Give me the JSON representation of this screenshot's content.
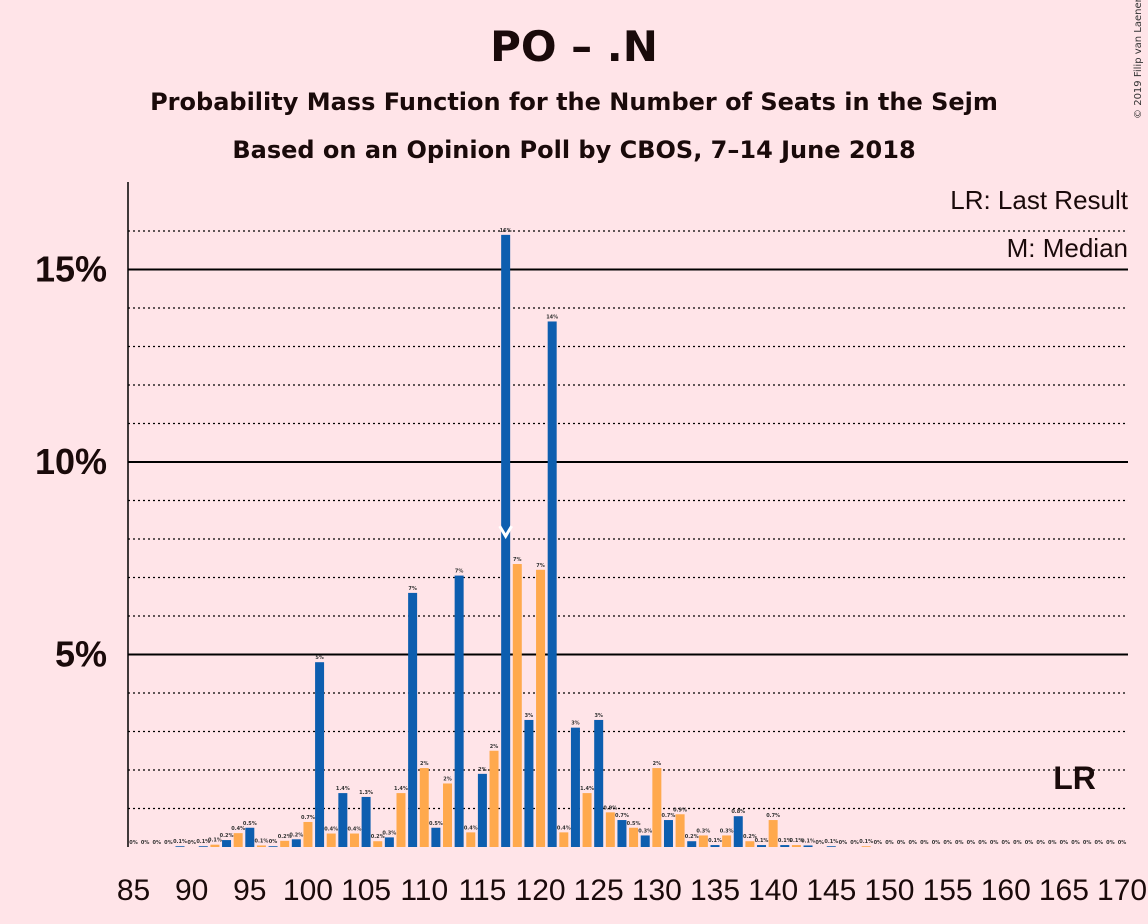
{
  "title": "PO – .N",
  "subtitle1": "Probability Mass Function for the Number of Seats in the Sejm",
  "subtitle2": "Based on an Opinion Poll by CBOS, 7–14 June 2018",
  "copyright": "© 2019 Filip van Laenen",
  "legend": {
    "lr": "LR: Last Result",
    "m": "M: Median"
  },
  "lr_label": "LR",
  "colors": {
    "primary": "#0D5EAF",
    "secondary": "#FFA94D",
    "background": "#FFE4E8"
  },
  "chart_data": {
    "type": "bar",
    "xlim": [
      85,
      170
    ],
    "ylim": [
      0,
      17
    ],
    "y_ticks": [
      {
        "value": 5,
        "label": "5%"
      },
      {
        "value": 10,
        "label": "10%"
      },
      {
        "value": 15,
        "label": "15%"
      }
    ],
    "x_ticks": [
      85,
      90,
      95,
      100,
      105,
      110,
      115,
      120,
      125,
      130,
      135,
      140,
      145,
      150,
      155,
      160,
      165,
      170
    ],
    "median": 117,
    "last_result": 166,
    "bars": [
      {
        "x": 85,
        "v": 0,
        "l": "0%"
      },
      {
        "x": 86,
        "v": 0,
        "l": "0%"
      },
      {
        "x": 87,
        "v": 0,
        "l": "0%"
      },
      {
        "x": 88,
        "v": 0,
        "l": "0%"
      },
      {
        "x": 89,
        "v": 0.02,
        "l": "0.1%"
      },
      {
        "x": 90,
        "v": 0,
        "l": "0%"
      },
      {
        "x": 91,
        "v": 0.02,
        "l": "0.1%"
      },
      {
        "x": 92,
        "v": 0.06,
        "l": "0.1%"
      },
      {
        "x": 93,
        "v": 0.18,
        "l": "0.2%"
      },
      {
        "x": 94,
        "v": 0.36,
        "l": "0.4%"
      },
      {
        "x": 95,
        "v": 0.5,
        "l": "0.5%"
      },
      {
        "x": 96,
        "v": 0.04,
        "l": "0.1%"
      },
      {
        "x": 97,
        "v": 0.02,
        "l": "0%"
      },
      {
        "x": 98,
        "v": 0.16,
        "l": "0.2%"
      },
      {
        "x": 99,
        "v": 0.2,
        "l": "0.2%"
      },
      {
        "x": 100,
        "v": 0.65,
        "l": "0.7%"
      },
      {
        "x": 101,
        "v": 4.8,
        "l": "5%"
      },
      {
        "x": 102,
        "v": 0.35,
        "l": "0.4%"
      },
      {
        "x": 103,
        "v": 1.4,
        "l": "1.4%"
      },
      {
        "x": 104,
        "v": 0.35,
        "l": "0.4%"
      },
      {
        "x": 105,
        "v": 1.3,
        "l": "1.3%"
      },
      {
        "x": 106,
        "v": 0.15,
        "l": "0.2%"
      },
      {
        "x": 107,
        "v": 0.25,
        "l": "0.3%"
      },
      {
        "x": 108,
        "v": 1.4,
        "l": "1.4%"
      },
      {
        "x": 109,
        "v": 6.6,
        "l": "7%"
      },
      {
        "x": 110,
        "v": 2.05,
        "l": "2%"
      },
      {
        "x": 111,
        "v": 0.5,
        "l": "0.5%"
      },
      {
        "x": 112,
        "v": 1.65,
        "l": "2%"
      },
      {
        "x": 113,
        "v": 7.05,
        "l": "7%"
      },
      {
        "x": 114,
        "v": 0.38,
        "l": "0.4%"
      },
      {
        "x": 115,
        "v": 1.9,
        "l": "2%"
      },
      {
        "x": 116,
        "v": 2.5,
        "l": "2%"
      },
      {
        "x": 117,
        "v": 15.9,
        "l": "16%"
      },
      {
        "x": 118,
        "v": 7.35,
        "l": "7%"
      },
      {
        "x": 119,
        "v": 3.3,
        "l": "3%"
      },
      {
        "x": 120,
        "v": 7.2,
        "l": "7%"
      },
      {
        "x": 121,
        "v": 13.65,
        "l": "14%"
      },
      {
        "x": 122,
        "v": 0.38,
        "l": "0.4%"
      },
      {
        "x": 123,
        "v": 3.1,
        "l": "3%"
      },
      {
        "x": 124,
        "v": 1.4,
        "l": "1.4%"
      },
      {
        "x": 125,
        "v": 3.3,
        "l": "3%"
      },
      {
        "x": 126,
        "v": 0.9,
        "l": "0.9%"
      },
      {
        "x": 127,
        "v": 0.7,
        "l": "0.7%"
      },
      {
        "x": 128,
        "v": 0.5,
        "l": "0.5%"
      },
      {
        "x": 129,
        "v": 0.3,
        "l": "0.3%"
      },
      {
        "x": 130,
        "v": 2.05,
        "l": "2%"
      },
      {
        "x": 131,
        "v": 0.7,
        "l": "0.7%"
      },
      {
        "x": 132,
        "v": 0.85,
        "l": "0.9%"
      },
      {
        "x": 133,
        "v": 0.15,
        "l": "0.2%"
      },
      {
        "x": 134,
        "v": 0.3,
        "l": "0.3%"
      },
      {
        "x": 135,
        "v": 0.05,
        "l": "0.1%"
      },
      {
        "x": 136,
        "v": 0.3,
        "l": "0.3%"
      },
      {
        "x": 137,
        "v": 0.8,
        "l": "0.8%"
      },
      {
        "x": 138,
        "v": 0.15,
        "l": "0.2%"
      },
      {
        "x": 139,
        "v": 0.05,
        "l": "0.1%"
      },
      {
        "x": 140,
        "v": 0.7,
        "l": "0.7%"
      },
      {
        "x": 141,
        "v": 0.05,
        "l": "0.1%"
      },
      {
        "x": 142,
        "v": 0.05,
        "l": "0.1%"
      },
      {
        "x": 143,
        "v": 0.04,
        "l": "0.1%"
      },
      {
        "x": 144,
        "v": 0,
        "l": "0%"
      },
      {
        "x": 145,
        "v": 0.02,
        "l": "0.1%"
      },
      {
        "x": 146,
        "v": 0,
        "l": "0%"
      },
      {
        "x": 147,
        "v": 0,
        "l": "0%"
      },
      {
        "x": 148,
        "v": 0.02,
        "l": "0.1%"
      },
      {
        "x": 149,
        "v": 0,
        "l": "0%"
      },
      {
        "x": 150,
        "v": 0,
        "l": "0%"
      },
      {
        "x": 151,
        "v": 0,
        "l": "0%"
      },
      {
        "x": 152,
        "v": 0,
        "l": "0%"
      },
      {
        "x": 153,
        "v": 0,
        "l": "0%"
      },
      {
        "x": 154,
        "v": 0,
        "l": "0%"
      },
      {
        "x": 155,
        "v": 0,
        "l": "0%"
      },
      {
        "x": 156,
        "v": 0,
        "l": "0%"
      },
      {
        "x": 157,
        "v": 0,
        "l": "0%"
      },
      {
        "x": 158,
        "v": 0,
        "l": "0%"
      },
      {
        "x": 159,
        "v": 0,
        "l": "0%"
      },
      {
        "x": 160,
        "v": 0,
        "l": "0%"
      },
      {
        "x": 161,
        "v": 0,
        "l": "0%"
      },
      {
        "x": 162,
        "v": 0,
        "l": "0%"
      },
      {
        "x": 163,
        "v": 0,
        "l": "0%"
      },
      {
        "x": 164,
        "v": 0,
        "l": "0%"
      },
      {
        "x": 165,
        "v": 0,
        "l": "0%"
      },
      {
        "x": 166,
        "v": 0,
        "l": "0%"
      },
      {
        "x": 167,
        "v": 0,
        "l": "0%"
      },
      {
        "x": 168,
        "v": 0,
        "l": "0%"
      },
      {
        "x": 169,
        "v": 0,
        "l": "0%"
      },
      {
        "x": 170,
        "v": 0,
        "l": "0%"
      }
    ]
  }
}
